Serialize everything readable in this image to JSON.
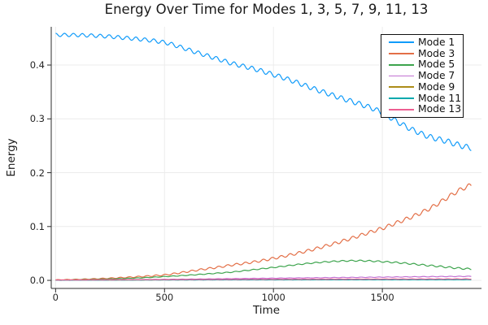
{
  "chart_data": {
    "type": "line",
    "title": "Energy Over Time for Modes 1, 3, 5, 7, 9, 11, 13",
    "xlabel": "Time",
    "ylabel": "Energy",
    "xlim": [
      -20,
      1955
    ],
    "ylim": [
      -0.015,
      0.471
    ],
    "xticks": {
      "values": [
        0,
        500,
        1000,
        1500
      ],
      "labels": [
        "0",
        "500",
        "1000",
        "1500"
      ]
    },
    "yticks": {
      "values": [
        0.0,
        0.1,
        0.2,
        0.3,
        0.4
      ],
      "labels": [
        "0.0",
        "0.1",
        "0.2",
        "0.3",
        "0.4"
      ]
    },
    "grid": true,
    "legend_position": "top-right",
    "background_color": "#FFFFFF",
    "grid_color": "#ECECEC",
    "axis_color": "#2B2B2B",
    "tick_label_color": "#262626",
    "legend_border_color": "#111111",
    "series": [
      {
        "name": "Mode 1",
        "color": "#109BFA",
        "wiggle": {
          "period": 41,
          "amp_start": 0.003,
          "amp_end": 0.005,
          "phase": 1.5708
        },
        "points": [
          [
            0,
            0.456
          ],
          [
            150,
            0.455
          ],
          [
            300,
            0.451
          ],
          [
            500,
            0.442
          ],
          [
            650,
            0.423
          ],
          [
            800,
            0.404
          ],
          [
            1000,
            0.382
          ],
          [
            1250,
            0.347
          ],
          [
            1470,
            0.317
          ],
          [
            1660,
            0.276
          ],
          [
            1800,
            0.258
          ],
          [
            1910,
            0.246
          ]
        ]
      },
      {
        "name": "Mode 3",
        "color": "#E36F47",
        "wiggle": {
          "period": 41,
          "amp_start": 0.0003,
          "amp_end": 0.004,
          "phase": 0
        },
        "points": [
          [
            0,
            0.001
          ],
          [
            250,
            0.004
          ],
          [
            500,
            0.01
          ],
          [
            650,
            0.019
          ],
          [
            800,
            0.028
          ],
          [
            1000,
            0.041
          ],
          [
            1250,
            0.065
          ],
          [
            1510,
            0.098
          ],
          [
            1700,
            0.13
          ],
          [
            1910,
            0.177
          ]
        ]
      },
      {
        "name": "Mode 5",
        "color": "#3DA44D",
        "wiggle": {
          "period": 41,
          "amp_start": 0.0002,
          "amp_end": 0.0015,
          "phase": 0.8
        },
        "points": [
          [
            0,
            0.0005
          ],
          [
            250,
            0.0025
          ],
          [
            500,
            0.007
          ],
          [
            800,
            0.015
          ],
          [
            1000,
            0.024
          ],
          [
            1200,
            0.033
          ],
          [
            1380,
            0.0365
          ],
          [
            1550,
            0.0335
          ],
          [
            1700,
            0.028
          ],
          [
            1910,
            0.021
          ]
        ]
      },
      {
        "name": "Mode 7",
        "color": "#C271D2",
        "wiggle": {
          "period": 41,
          "amp_start": 0.0001,
          "amp_end": 0.0005,
          "phase": 0.4
        },
        "points": [
          [
            0,
            0.0004
          ],
          [
            500,
            0.0018
          ],
          [
            1000,
            0.004
          ],
          [
            1500,
            0.006
          ],
          [
            1910,
            0.0075
          ]
        ]
      },
      {
        "name": "Mode 9",
        "color": "#AC8D18",
        "wiggle": {
          "period": 41,
          "amp_start": 0.0001,
          "amp_end": 0.0002,
          "phase": 0
        },
        "points": [
          [
            0,
            0.0003
          ],
          [
            500,
            0.0009
          ],
          [
            1000,
            0.0014
          ],
          [
            1910,
            0.002
          ]
        ]
      },
      {
        "name": "Mode 11",
        "color": "#00A9AD",
        "wiggle": {
          "period": 41,
          "amp_start": 0.0001,
          "amp_end": 0.0002,
          "phase": 1.2
        },
        "points": [
          [
            0,
            0.0002
          ],
          [
            500,
            0.0007
          ],
          [
            1000,
            0.001
          ],
          [
            1910,
            0.0013
          ]
        ]
      },
      {
        "name": "Mode 13",
        "color": "#ED5F92",
        "wiggle": {
          "period": 41,
          "amp_start": 0.0001,
          "amp_end": 0.0003,
          "phase": 2.1
        },
        "points": [
          [
            0,
            0.0006
          ],
          [
            500,
            0.0014
          ],
          [
            1000,
            0.002
          ],
          [
            1910,
            0.0026
          ]
        ]
      }
    ]
  }
}
